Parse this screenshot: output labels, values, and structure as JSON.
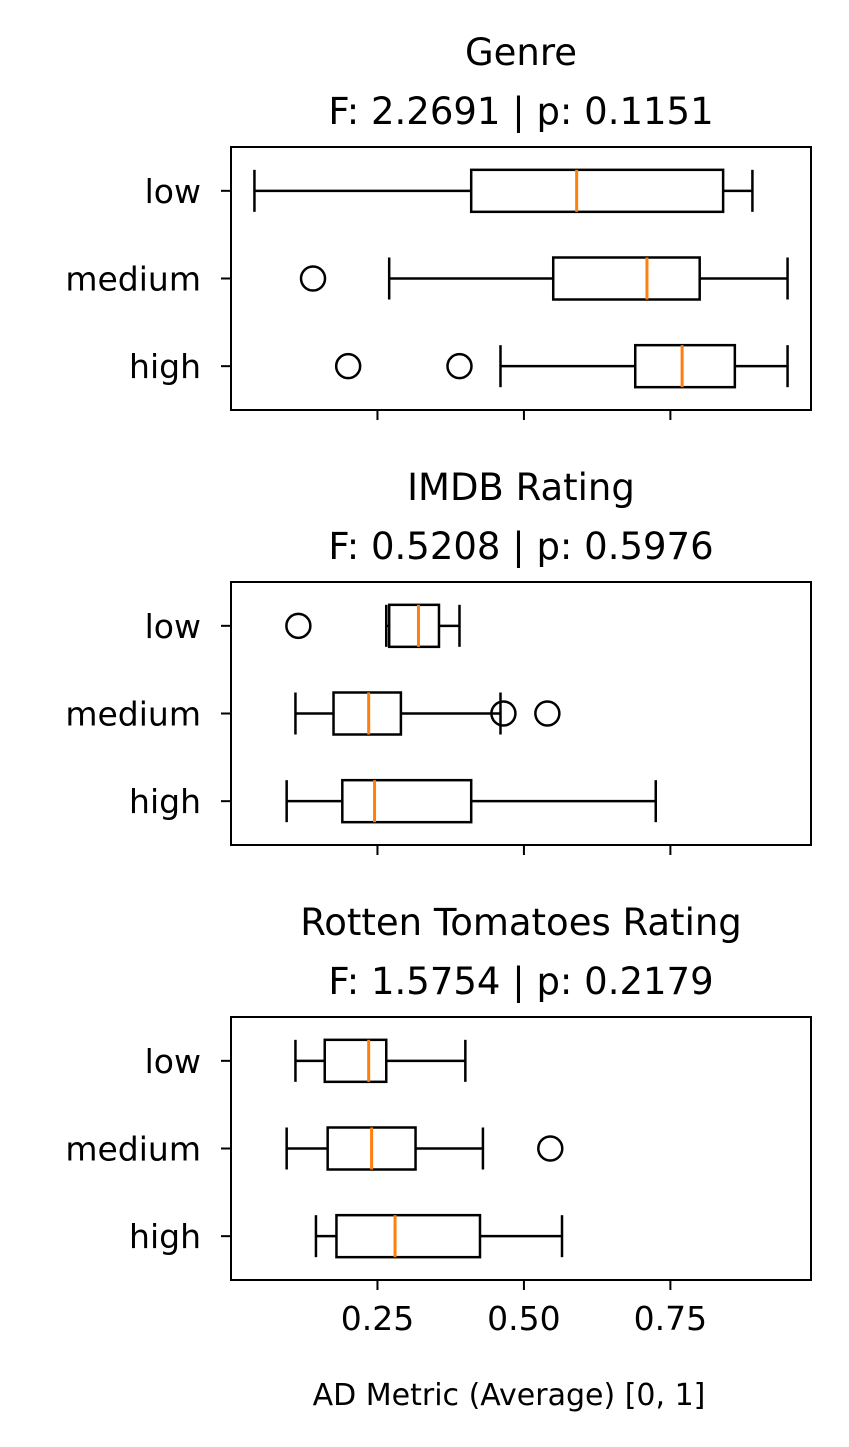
{
  "chart_data": [
    {
      "type": "boxplot",
      "orientation": "horizontal",
      "title": "Genre",
      "subtitle": "F: 2.2691 | p: 0.1151",
      "categories": [
        "low",
        "medium",
        "high"
      ],
      "xlim": [
        0.0,
        0.99
      ],
      "show_xtick_labels": false,
      "boxes": [
        {
          "category": "low",
          "whisker_low": 0.04,
          "q1": 0.41,
          "median": 0.59,
          "q3": 0.84,
          "whisker_high": 0.89,
          "outliers": []
        },
        {
          "category": "medium",
          "whisker_low": 0.27,
          "q1": 0.55,
          "median": 0.71,
          "q3": 0.8,
          "whisker_high": 0.95,
          "outliers": [
            0.14
          ]
        },
        {
          "category": "high",
          "whisker_low": 0.46,
          "q1": 0.69,
          "median": 0.77,
          "q3": 0.86,
          "whisker_high": 0.95,
          "outliers": [
            0.2,
            0.39
          ]
        }
      ]
    },
    {
      "type": "boxplot",
      "orientation": "horizontal",
      "title": "IMDB Rating",
      "subtitle": "F: 0.5208 | p: 0.5976",
      "categories": [
        "low",
        "medium",
        "high"
      ],
      "xlim": [
        0.0,
        0.99
      ],
      "show_xtick_labels": false,
      "boxes": [
        {
          "category": "low",
          "whisker_low": 0.265,
          "q1": 0.27,
          "median": 0.32,
          "q3": 0.355,
          "whisker_high": 0.39,
          "outliers": [
            0.115
          ]
        },
        {
          "category": "medium",
          "whisker_low": 0.11,
          "q1": 0.175,
          "median": 0.235,
          "q3": 0.29,
          "whisker_high": 0.46,
          "outliers": [
            0.465,
            0.54
          ]
        },
        {
          "category": "high",
          "whisker_low": 0.095,
          "q1": 0.19,
          "median": 0.245,
          "q3": 0.41,
          "whisker_high": 0.725,
          "outliers": []
        }
      ]
    },
    {
      "type": "boxplot",
      "orientation": "horizontal",
      "title": "Rotten Tomatoes Rating",
      "subtitle": "F: 1.5754 | p: 0.2179",
      "categories": [
        "low",
        "medium",
        "high"
      ],
      "xlim": [
        0.0,
        0.99
      ],
      "show_xtick_labels": true,
      "xticks": [
        "0.25",
        "0.50",
        "0.75"
      ],
      "xlabel": "AD Metric (Average) [0, 1]",
      "boxes": [
        {
          "category": "low",
          "whisker_low": 0.11,
          "q1": 0.16,
          "median": 0.235,
          "q3": 0.265,
          "whisker_high": 0.4,
          "outliers": []
        },
        {
          "category": "medium",
          "whisker_low": 0.095,
          "q1": 0.165,
          "median": 0.24,
          "q3": 0.315,
          "whisker_high": 0.43,
          "outliers": [
            0.545
          ]
        },
        {
          "category": "high",
          "whisker_low": 0.145,
          "q1": 0.18,
          "median": 0.28,
          "q3": 0.425,
          "whisker_high": 0.565,
          "outliers": []
        }
      ]
    }
  ],
  "colors": {
    "box_edge": "#000000",
    "median": "#ff7f0e",
    "background": "#ffffff"
  }
}
